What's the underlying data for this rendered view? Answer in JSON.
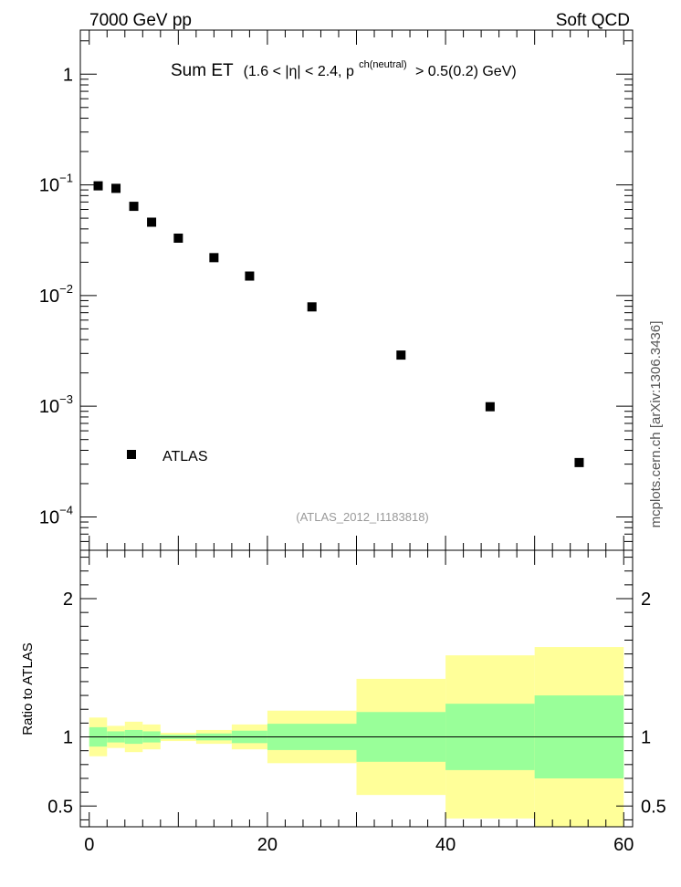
{
  "header": {
    "energy_label": "7000 GeV pp",
    "process_label": "Soft QCD",
    "watermark": "mcplots.cern.ch [arXiv:1306.3436]"
  },
  "title": {
    "main": "Sum ET",
    "cut_prefix": "(1.6 < |η| < 2.4, p",
    "cut_superscript": "ch(neutral)",
    "cut_suffix": "> 0.5(0.2) GeV)"
  },
  "analysis_id": "(ATLAS_2012_I1183818)",
  "legend": {
    "entry": "ATLAS",
    "marker": "black-square"
  },
  "colors": {
    "band_outer": "#ffff99",
    "band_inner": "#99ff99",
    "marker": "#000000",
    "frame": "#000000",
    "id_text": "#999999",
    "watermark": "#555555"
  },
  "chart_data": [
    {
      "type": "scatter",
      "panel": "main",
      "xlim": [
        -1,
        61
      ],
      "ylim": [
        5e-05,
        2.5
      ],
      "yscale": "log",
      "yticks_major": [
        0.0001,
        0.001,
        0.01,
        0.1,
        1
      ],
      "ytick_labels": [
        {
          "base": "10",
          "exp": "−4"
        },
        {
          "base": "10",
          "exp": "−3"
        },
        {
          "base": "10",
          "exp": "−2"
        },
        {
          "base": "10",
          "exp": "−1"
        },
        {
          "base": "1",
          "exp": ""
        }
      ],
      "series": [
        {
          "name": "ATLAS",
          "x": [
            1,
            3,
            5,
            7,
            10,
            14,
            18,
            25,
            35,
            45,
            55
          ],
          "y": [
            0.098,
            0.093,
            0.064,
            0.046,
            0.033,
            0.022,
            0.015,
            0.0079,
            0.0029,
            0.00099,
            0.00031
          ]
        }
      ]
    },
    {
      "type": "area",
      "panel": "ratio",
      "ylabel": "Ratio to ATLAS",
      "xlim": [
        -1,
        61
      ],
      "ylim": [
        0.35,
        2.35
      ],
      "yticks": [
        0.5,
        1,
        2
      ],
      "ytick_labels": [
        "0.5",
        "1",
        "2"
      ],
      "xticks": [
        0,
        20,
        40,
        60
      ],
      "xtick_labels": [
        "0",
        "20",
        "40",
        "60"
      ],
      "reference_line": 1,
      "bin_edges": [
        0,
        2,
        4,
        6,
        8,
        12,
        16,
        20,
        30,
        40,
        50,
        60
      ],
      "outer_band_low": [
        0.86,
        0.92,
        0.89,
        0.91,
        0.97,
        0.95,
        0.91,
        0.81,
        0.58,
        0.41,
        0.35
      ],
      "outer_band_high": [
        1.14,
        1.08,
        1.11,
        1.09,
        1.03,
        1.05,
        1.09,
        1.19,
        1.42,
        1.59,
        1.65
      ],
      "inner_band_low": [
        0.93,
        0.96,
        0.95,
        0.96,
        0.985,
        0.975,
        0.955,
        0.905,
        0.82,
        0.76,
        0.7
      ],
      "inner_band_high": [
        1.07,
        1.04,
        1.05,
        1.04,
        1.015,
        1.025,
        1.045,
        1.095,
        1.18,
        1.24,
        1.3
      ]
    }
  ]
}
